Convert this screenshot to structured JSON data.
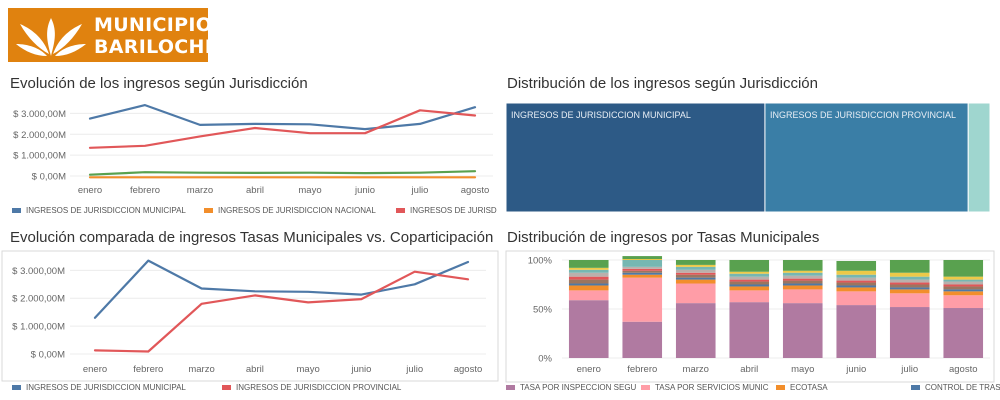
{
  "logo": {
    "line1": "MUNICIPIO",
    "line2": "BARILOCHE",
    "color": "#e0820f"
  },
  "panels": {
    "p1": {
      "title": "Evolución de los ingresos según Jurisdicción"
    },
    "p2": {
      "title": "Distribución de los ingresos según Jurisdicción"
    },
    "p3": {
      "title": "Evolución comparada de ingresos Tasas Municipales vs. Coparticipación"
    },
    "p4": {
      "title": "Distribución de ingresos por Tasas Municipales"
    }
  },
  "chart_data": [
    {
      "type": "line",
      "title": "Evolución de los ingresos según Jurisdicción",
      "categories": [
        "enero",
        "febrero",
        "marzo",
        "abril",
        "mayo",
        "junio",
        "julio",
        "agosto"
      ],
      "y_ticks": [
        "$ 0,00M",
        "$ 1.000,00M",
        "$ 2.000,00M",
        "$ 3.000,00M"
      ],
      "ylim": [
        0,
        3500
      ],
      "series": [
        {
          "name": "INGRESOS DE JURISDICCION MUNICIPAL",
          "color": "#4e79a7",
          "values": [
            2750,
            3400,
            2450,
            2500,
            2480,
            2250,
            2500,
            3300
          ]
        },
        {
          "name": "INGRESOS DE JURISDICCION NACIONAL",
          "color": "#f28e2b",
          "values": [
            -60,
            -60,
            -60,
            -60,
            -60,
            -60,
            -60,
            -60
          ]
        },
        {
          "name": "INGRESOS DE JURISD",
          "color": "#e15759",
          "values": [
            1350,
            1450,
            1900,
            2300,
            2050,
            2050,
            3150,
            2900
          ]
        },
        {
          "name": "",
          "color": "#59a14f",
          "values": [
            60,
            180,
            160,
            150,
            160,
            140,
            160,
            230
          ]
        }
      ]
    },
    {
      "type": "treemap",
      "title": "Distribución de los ingresos según Jurisdicción",
      "items": [
        {
          "label": "INGRESOS DE JURISDICCION MUNICIPAL",
          "share": 0.535,
          "color": "#2d5a86"
        },
        {
          "label": "INGRESOS DE JURISDICCION PROVINCIAL",
          "share": 0.42,
          "color": "#3a7ea6"
        },
        {
          "label": "",
          "share": 0.045,
          "color": "#9fd6cf"
        }
      ]
    },
    {
      "type": "line",
      "title": "Evolución comparada de ingresos Tasas Municipales vs. Coparticipación",
      "categories": [
        "enero",
        "febrero",
        "marzo",
        "abril",
        "mayo",
        "junio",
        "julio",
        "agosto"
      ],
      "y_ticks": [
        "$ 0,00M",
        "$ 1.000,00M",
        "$ 2.000,00M",
        "$ 3.000,00M"
      ],
      "ylim": [
        -250,
        3550
      ],
      "series": [
        {
          "name": "INGRESOS DE JURISDICCION MUNICIPAL",
          "color": "#4e79a7",
          "values": [
            1300,
            3350,
            2350,
            2250,
            2230,
            2130,
            2500,
            3300
          ]
        },
        {
          "name": "INGRESOS DE JURISDICCION PROVINCIAL",
          "color": "#e15759",
          "values": [
            130,
            90,
            1800,
            2100,
            1850,
            1970,
            2950,
            2680
          ]
        }
      ]
    },
    {
      "type": "bar",
      "stacked": true,
      "title": "Distribución de ingresos por Tasas Municipales",
      "categories": [
        "enero",
        "febrero",
        "marzo",
        "abril",
        "mayo",
        "junio",
        "julio",
        "agosto"
      ],
      "y_ticks": [
        "0%",
        "50%",
        "100%"
      ],
      "ylim": [
        0,
        100
      ],
      "series": [
        {
          "name": "TASA POR INSPECCION SEGU",
          "color": "#b07aa1",
          "values": [
            59,
            37,
            56,
            57,
            56,
            54,
            52,
            51
          ]
        },
        {
          "name": "TASA POR SERVICIOS MUNIC",
          "color": "#ff9da7",
          "values": [
            10,
            45,
            20,
            12,
            14,
            14,
            14,
            13
          ]
        },
        {
          "name": "ECOTASA",
          "color": "#f28e2b",
          "values": [
            5,
            3,
            4,
            4,
            4,
            4,
            4,
            4
          ]
        },
        {
          "name": "CONTROL DE TRAS",
          "color": "#4e79a7",
          "values": [
            2,
            2,
            2,
            2,
            2,
            2,
            2,
            2
          ]
        },
        {
          "name": "",
          "color": "#9c755f",
          "values": [
            4,
            2,
            3,
            3,
            3,
            3,
            3,
            3
          ]
        },
        {
          "name": "",
          "color": "#e15759",
          "values": [
            3,
            2,
            2,
            2,
            2,
            2,
            2,
            2
          ]
        },
        {
          "name": "",
          "color": "#bab0ac",
          "values": [
            4,
            2,
            3,
            3,
            3,
            3,
            3,
            3
          ]
        },
        {
          "name": "",
          "color": "#76b7b2",
          "values": [
            3,
            7,
            3,
            3,
            3,
            3,
            3,
            2
          ]
        },
        {
          "name": "",
          "color": "#edc948",
          "values": [
            2,
            1,
            2,
            2,
            2,
            4,
            4,
            3
          ]
        },
        {
          "name": "",
          "color": "#59a14f",
          "values": [
            8,
            3,
            5,
            12,
            11,
            10,
            13,
            17
          ]
        }
      ]
    }
  ]
}
